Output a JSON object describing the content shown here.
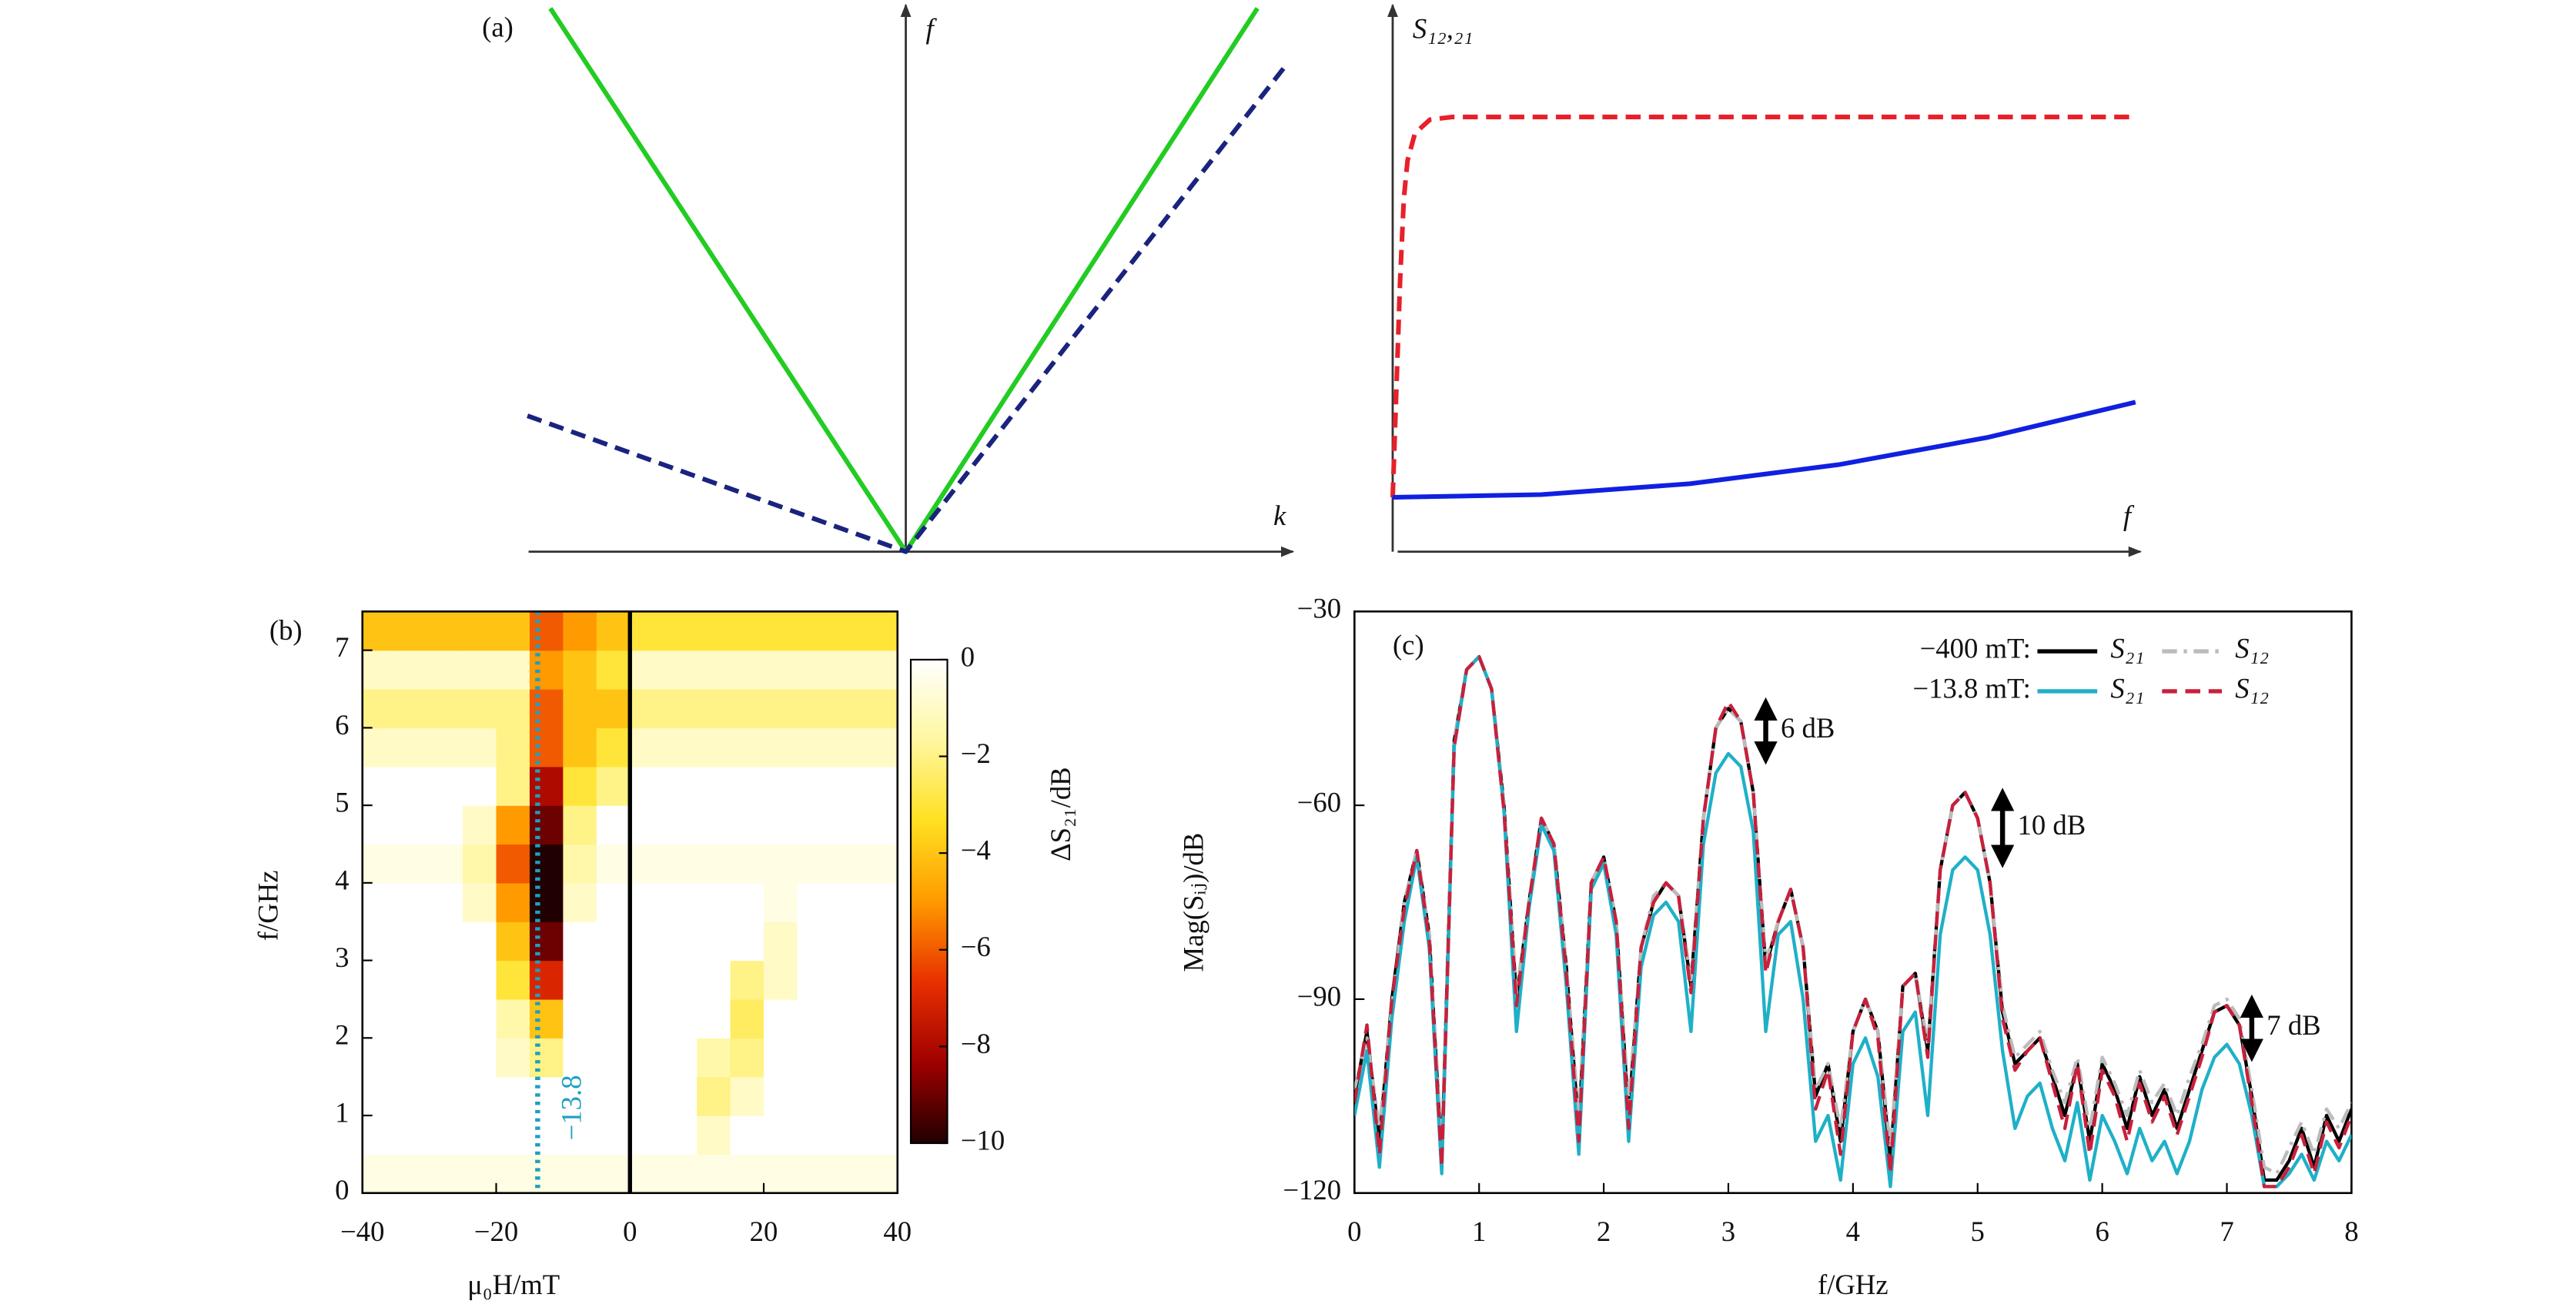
{
  "chart_data": [
    {
      "type": "line",
      "panel_label": "(a)",
      "xlabel": "k",
      "ylabel": "f",
      "xlim": [
        -1,
        1
      ],
      "ylim": [
        0,
        1
      ],
      "series": [
        {
          "color": "#22cc22",
          "style": "solid",
          "x": [
            -0.93,
            0,
            0.92
          ],
          "values": [
            1,
            0,
            1
          ]
        },
        {
          "color": "#1a237e",
          "style": "dashed",
          "x": [
            -0.99,
            0,
            1
          ],
          "values": [
            0.25,
            0,
            0.9
          ]
        }
      ]
    },
    {
      "type": "line",
      "xlabel": "f",
      "ylabel": "S₁₂,₂₁",
      "xlim": [
        0,
        1
      ],
      "ylim": [
        0,
        1
      ],
      "series": [
        {
          "color": "#e8202a",
          "style": "dashed",
          "x": [
            0,
            0.005,
            0.01,
            0.015,
            0.02,
            0.03,
            0.05,
            0.08,
            1
          ],
          "values": [
            0.1,
            0.3,
            0.5,
            0.65,
            0.72,
            0.77,
            0.795,
            0.8,
            0.8
          ]
        },
        {
          "color": "#1020e0",
          "style": "solid",
          "x": [
            0,
            0.2,
            0.4,
            0.6,
            0.8,
            1
          ],
          "values": [
            0.1,
            0.105,
            0.125,
            0.16,
            0.21,
            0.275
          ]
        }
      ]
    },
    {
      "type": "heatmap",
      "panel_label": "(b)",
      "xlabel": "μ₀H/mT",
      "ylabel": "f/GHz",
      "colorbar_label": "ΔS₂₁/dB",
      "xlim": [
        -40,
        40
      ],
      "ylim": [
        0,
        7.5
      ],
      "xticks": [
        {
          "value": -40,
          "label": "−40"
        },
        {
          "value": -20,
          "label": "−20"
        },
        0,
        20,
        40
      ],
      "yticks": [
        0,
        1,
        2,
        3,
        4,
        5,
        6,
        7
      ],
      "clim": [
        -10,
        0
      ],
      "cticks": [
        0,
        {
          "value": -2,
          "label": "−2"
        },
        {
          "value": -4,
          "label": "−4"
        },
        {
          "value": -6,
          "label": "−6"
        },
        {
          "value": -8,
          "label": "−8"
        },
        {
          "value": -10,
          "label": "−10"
        }
      ],
      "colormap": [
        "#ffffff",
        "#fff7a0",
        "#ffe020",
        "#ff9a00",
        "#e83000",
        "#a00000",
        "#200000"
      ],
      "x_edges": [
        -40,
        -35,
        -30,
        -25,
        -20,
        -15,
        -10,
        -5,
        0,
        5,
        10,
        15,
        20,
        25,
        30,
        35,
        40
      ],
      "y_edges": [
        0,
        0.5,
        1,
        1.5,
        2,
        2.5,
        3,
        3.5,
        4,
        4.5,
        5,
        5.5,
        6,
        6.5,
        7,
        7.5
      ],
      "z": [
        [
          -0.5,
          -0.5,
          -0.5,
          -0.5,
          -0.5,
          -0.5,
          -0.5,
          -0.5,
          -0.5,
          -0.5,
          -0.5,
          -0.5,
          -0.5,
          -0.5,
          -0.5,
          -0.5
        ],
        [
          0,
          0,
          0,
          0,
          0,
          0,
          0,
          0,
          0,
          0,
          -1,
          0,
          0,
          0,
          0,
          0
        ],
        [
          0,
          0,
          0,
          0,
          0,
          0,
          0,
          0,
          0,
          0,
          -2,
          -1,
          0,
          0,
          0,
          0
        ],
        [
          0,
          0,
          0,
          0,
          -1,
          -2,
          0,
          0,
          0,
          0,
          -1.5,
          -2,
          0,
          0,
          0,
          0
        ],
        [
          0,
          0,
          0,
          0,
          -1.5,
          -4,
          0,
          0,
          0,
          0,
          0,
          -2.5,
          0,
          0,
          0,
          0
        ],
        [
          0,
          0,
          0,
          0,
          -3,
          -7,
          0,
          0,
          0,
          0,
          0,
          -2,
          -1,
          0,
          0,
          0
        ],
        [
          0,
          0,
          0,
          0,
          -4,
          -9,
          0,
          0,
          0,
          0,
          0,
          0,
          -1,
          0,
          0,
          0
        ],
        [
          0,
          0,
          0,
          -1,
          -5,
          -10,
          -1,
          0,
          0,
          0,
          0,
          0,
          -0.5,
          0,
          0,
          0
        ],
        [
          -0.5,
          -0.5,
          -0.5,
          -1.5,
          -6,
          -10,
          -1.5,
          -0.5,
          -0.5,
          -0.5,
          -0.5,
          -0.5,
          -0.5,
          -0.5,
          -0.5,
          -0.5
        ],
        [
          0,
          0,
          0,
          -1,
          -5,
          -9,
          -2,
          0,
          0,
          0,
          0,
          0,
          0,
          0,
          0,
          0
        ],
        [
          0,
          0,
          0,
          0,
          -2,
          -8,
          -3,
          -2,
          0,
          0,
          0,
          0,
          0,
          0,
          0,
          0
        ],
        [
          -1,
          -1,
          -1,
          -1,
          -2,
          -6,
          -4,
          -3,
          -1,
          -1,
          -1,
          -1,
          -1,
          -1,
          -1,
          -1
        ],
        [
          -2,
          -2,
          -2,
          -2,
          -2,
          -6,
          -4,
          -4,
          -2,
          -2,
          -2,
          -2,
          -2,
          -2,
          -2,
          -2
        ],
        [
          -1,
          -1,
          -1,
          -1,
          -1,
          -5,
          -4,
          -3,
          -1,
          -1,
          -1,
          -1,
          -1,
          -1,
          -1,
          -1
        ],
        [
          -4,
          -4,
          -4,
          -4,
          -4,
          -6,
          -5,
          -4,
          -3,
          -3,
          -3,
          -3,
          -3,
          -3,
          -3,
          -3
        ]
      ],
      "vlines": [
        {
          "x": 0,
          "color": "#000000",
          "style": "solid"
        },
        {
          "x": -13.8,
          "color": "#1ca0c0",
          "style": "dotted",
          "label": "−13.8"
        }
      ]
    },
    {
      "type": "line",
      "panel_label": "(c)",
      "xlabel": "f/GHz",
      "ylabel": "Mag(Sᵢⱼ)/dB",
      "xlim": [
        0,
        8
      ],
      "ylim": [
        -120,
        -30
      ],
      "xticks": [
        0,
        1,
        2,
        3,
        4,
        5,
        6,
        7,
        8
      ],
      "yticks": [
        {
          "value": -30,
          "label": "−30"
        },
        {
          "value": -60,
          "label": "−60"
        },
        {
          "value": -90,
          "label": "−90"
        },
        {
          "value": -120,
          "label": "−120"
        }
      ],
      "legend_groups": [
        "−400 mT:",
        "−13.8 mT:"
      ],
      "x": [
        0,
        0.1,
        0.2,
        0.3,
        0.4,
        0.5,
        0.6,
        0.7,
        0.8,
        0.9,
        1,
        1.1,
        1.2,
        1.3,
        1.4,
        1.5,
        1.6,
        1.7,
        1.8,
        1.9,
        2,
        2.1,
        2.2,
        2.3,
        2.4,
        2.5,
        2.6,
        2.7,
        2.8,
        2.9,
        3,
        3.1,
        3.2,
        3.3,
        3.4,
        3.5,
        3.6,
        3.7,
        3.8,
        3.9,
        4,
        4.1,
        4.2,
        4.3,
        4.4,
        4.5,
        4.6,
        4.7,
        4.8,
        4.9,
        5,
        5.1,
        5.2,
        5.3,
        5.4,
        5.5,
        5.6,
        5.7,
        5.8,
        5.9,
        6,
        6.1,
        6.2,
        6.3,
        6.4,
        6.5,
        6.6,
        6.7,
        6.8,
        6.9,
        7,
        7.1,
        7.2,
        7.3,
        7.4,
        7.5,
        7.6,
        7.7,
        7.8,
        7.9,
        8
      ],
      "series": [
        {
          "name": "S₂₁",
          "group": 0,
          "color": "#000000",
          "style": "solid",
          "values": [
            -105,
            -95,
            -112,
            -90,
            -75,
            -67,
            -80,
            -115,
            -50,
            -39,
            -37,
            -42,
            -60,
            -90,
            -75,
            -62,
            -66,
            -85,
            -110,
            -72,
            -68,
            -78,
            -108,
            -82,
            -75,
            -72,
            -74,
            -88,
            -62,
            -48,
            -45,
            -47,
            -58,
            -85,
            -78,
            -73,
            -82,
            -105,
            -100,
            -112,
            -95,
            -90,
            -95,
            -115,
            -88,
            -86,
            -98,
            -70,
            -60,
            -58,
            -62,
            -72,
            -92,
            -100,
            -98,
            -96,
            -102,
            -108,
            -100,
            -112,
            -100,
            -104,
            -110,
            -102,
            -108,
            -104,
            -110,
            -104,
            -98,
            -92,
            -91,
            -94,
            -105,
            -118,
            -118,
            -115,
            -110,
            -116,
            -108,
            -112,
            -107
          ]
        },
        {
          "name": "S₁₂",
          "group": 0,
          "color": "#bbbbbb",
          "style": "dashdot",
          "values": [
            -104,
            -96,
            -110,
            -91,
            -75,
            -67,
            -80,
            -113,
            -50,
            -39,
            -37,
            -42,
            -60,
            -89,
            -75,
            -62,
            -66,
            -85,
            -108,
            -72,
            -68,
            -78,
            -106,
            -82,
            -74,
            -72,
            -74,
            -87,
            -62,
            -48,
            -45,
            -47,
            -58,
            -84,
            -78,
            -73,
            -82,
            -104,
            -100,
            -110,
            -95,
            -90,
            -95,
            -113,
            -88,
            -86,
            -97,
            -70,
            -60,
            -58,
            -62,
            -72,
            -91,
            -99,
            -97,
            -95,
            -101,
            -106,
            -99,
            -110,
            -99,
            -103,
            -108,
            -101,
            -106,
            -103,
            -108,
            -102,
            -97,
            -91,
            -90,
            -93,
            -104,
            -116,
            -117,
            -113,
            -109,
            -114,
            -107,
            -110,
            -106
          ]
        },
        {
          "name": "S₂₁",
          "group": 1,
          "color": "#1fb0c8",
          "style": "solid",
          "values": [
            -108,
            -98,
            -116,
            -93,
            -78,
            -68,
            -82,
            -117,
            -51,
            -39,
            -37,
            -42,
            -61,
            -95,
            -76,
            -63,
            -67,
            -88,
            -114,
            -73,
            -69,
            -80,
            -112,
            -85,
            -77,
            -75,
            -78,
            -95,
            -66,
            -55,
            -52,
            -54,
            -64,
            -95,
            -80,
            -78,
            -90,
            -112,
            -108,
            -118,
            -100,
            -96,
            -102,
            -119,
            -95,
            -92,
            -108,
            -80,
            -70,
            -68,
            -70,
            -80,
            -98,
            -110,
            -105,
            -103,
            -110,
            -115,
            -106,
            -118,
            -108,
            -112,
            -117,
            -110,
            -115,
            -112,
            -117,
            -112,
            -104,
            -99,
            -97,
            -100,
            -108,
            -119,
            -119,
            -117,
            -114,
            -118,
            -112,
            -115,
            -111
          ]
        },
        {
          "name": "S₁₂",
          "group": 1,
          "color": "#c8203c",
          "style": "dashed",
          "values": [
            -106,
            -94,
            -114,
            -90,
            -76,
            -67,
            -81,
            -116,
            -51,
            -39,
            -37,
            -42,
            -61,
            -91,
            -75,
            -62,
            -66,
            -86,
            -112,
            -72,
            -68,
            -78,
            -110,
            -82,
            -75,
            -72,
            -74,
            -89,
            -62,
            -48,
            -44,
            -47,
            -58,
            -86,
            -78,
            -73,
            -82,
            -107,
            -101,
            -114,
            -95,
            -90,
            -96,
            -117,
            -88,
            -86,
            -99,
            -70,
            -60,
            -58,
            -62,
            -72,
            -93,
            -101,
            -98,
            -96,
            -103,
            -110,
            -100,
            -114,
            -101,
            -105,
            -112,
            -103,
            -109,
            -105,
            -111,
            -105,
            -99,
            -92,
            -91,
            -94,
            -106,
            -119,
            -119,
            -116,
            -111,
            -117,
            -109,
            -113,
            -108
          ]
        }
      ],
      "annotations": [
        {
          "text": "6 dB",
          "x": 3.3,
          "y_top": -44,
          "y_bottom": -53
        },
        {
          "text": "10 dB",
          "x": 5.2,
          "y_top": -58,
          "y_bottom": -69
        },
        {
          "text": "7 dB",
          "x": 7.2,
          "y_top": -90,
          "y_bottom": -99
        }
      ]
    }
  ]
}
